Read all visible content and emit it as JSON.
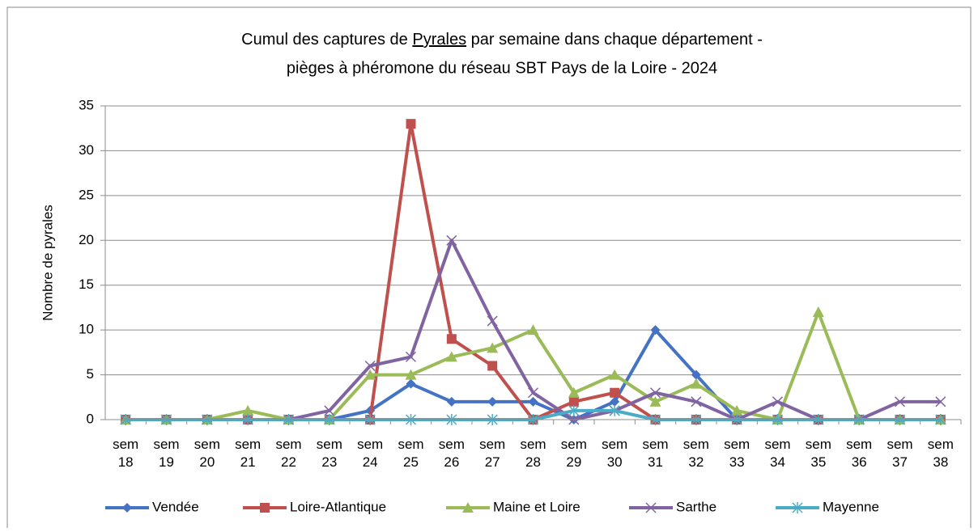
{
  "chart_data": {
    "type": "line",
    "title": [
      [
        "Cumul des captures de ",
        "Pyrales",
        " par semaine dans chaque département -"
      ],
      "pièges à phéromone du réseau SBT Pays de la Loire - 2024"
    ],
    "y_label": "Nombre de pyrales",
    "categories": [
      "sem 18",
      "sem 19",
      "sem 20",
      "sem 21",
      "sem 22",
      "sem 23",
      "sem 24",
      "sem 25",
      "sem 26",
      "sem 27",
      "sem 28",
      "sem 29",
      "sem 30",
      "sem 31",
      "sem 32",
      "sem 33",
      "sem 34",
      "sem 35",
      "sem 36",
      "sem 37",
      "sem 38"
    ],
    "series": [
      {
        "name": "Vendée",
        "color": "#4472c4",
        "marker": "diamond",
        "values": [
          0,
          0,
          0,
          0,
          0,
          0,
          1,
          4,
          2,
          2,
          2,
          0,
          2,
          10,
          5,
          0,
          0,
          0,
          0,
          0,
          0
        ]
      },
      {
        "name": "Loire-Atlantique",
        "color": "#c0504d",
        "marker": "square",
        "values": [
          0,
          0,
          0,
          0,
          0,
          0,
          0,
          33,
          9,
          6,
          0,
          2,
          3,
          0,
          0,
          0,
          0,
          0,
          0,
          0,
          0
        ]
      },
      {
        "name": "Maine et Loire",
        "color": "#9bbb59",
        "marker": "triangle",
        "values": [
          0,
          0,
          0,
          1,
          0,
          0,
          5,
          5,
          7,
          8,
          10,
          3,
          5,
          2,
          4,
          1,
          0,
          12,
          0,
          0,
          0
        ]
      },
      {
        "name": "Sarthe",
        "color": "#8064a2",
        "marker": "x",
        "values": [
          0,
          0,
          0,
          0,
          0,
          1,
          6,
          7,
          20,
          11,
          3,
          0,
          1,
          3,
          2,
          0,
          2,
          0,
          0,
          2,
          2
        ]
      },
      {
        "name": "Mayenne",
        "color": "#4bacc6",
        "marker": "star",
        "values": [
          0,
          0,
          0,
          0,
          0,
          0,
          0,
          0,
          0,
          0,
          0,
          1,
          1,
          0,
          0,
          0,
          0,
          0,
          0,
          0,
          0
        ]
      }
    ],
    "ylim": [
      0,
      35
    ],
    "yticks": [
      0,
      5,
      10,
      15,
      20,
      25,
      30,
      35
    ],
    "grid": true,
    "legend": "bottom"
  }
}
